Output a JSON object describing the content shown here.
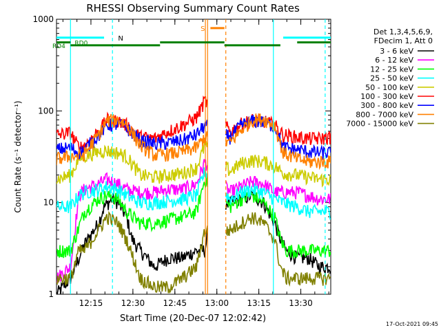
{
  "chart_data": {
    "type": "line",
    "title": "RHESSI Observing Summary Count Rates",
    "xlabel": "Start Time (20-Dec-07 12:02:42)",
    "ylabel": "Count Rate (s⁻¹ detector⁻¹)",
    "yscale": "log",
    "ylim": [
      1,
      1000
    ],
    "xlim_minutes": [
      0,
      98
    ],
    "x_ticks": [
      "12:15",
      "12:30",
      "12:45",
      "13:00",
      "13:15",
      "13:30"
    ],
    "y_ticks": [
      "1",
      "10",
      "100",
      "1000"
    ],
    "legend_title": [
      "Det 1,3,4,5,6,9,",
      "FDecim 1, Att 0"
    ],
    "legend_position": "right",
    "footer": "17-Oct-2021 09:45",
    "grid": false,
    "series": [
      {
        "name": "3 - 6 keV",
        "color": "#000000",
        "gap": [
          1.0,
          1.8
        ],
        "offset": 0,
        "profile": [
          [
            0,
            1.0
          ],
          [
            5,
            1.5
          ],
          [
            10,
            3.5
          ],
          [
            15,
            6
          ],
          [
            17,
            9
          ],
          [
            20,
            11
          ],
          [
            22,
            10
          ],
          [
            25,
            7
          ],
          [
            27,
            4
          ],
          [
            30,
            3
          ],
          [
            35,
            2
          ],
          [
            40,
            2.5
          ],
          [
            45,
            2.5
          ],
          [
            50,
            3
          ],
          [
            53,
            3
          ],
          [
            56,
            10
          ],
          [
            62,
            10
          ],
          [
            66,
            11
          ],
          [
            70,
            12
          ],
          [
            74,
            10
          ],
          [
            78,
            6
          ],
          [
            80,
            4
          ],
          [
            82,
            3
          ],
          [
            86,
            2.5
          ],
          [
            90,
            2.5
          ],
          [
            94,
            2
          ],
          [
            98,
            2
          ]
        ]
      },
      {
        "name": "6 - 12 keV",
        "color": "#ff00ff",
        "gap": [
          1.0,
          1.5
        ],
        "offset": 0,
        "profile": [
          [
            0,
            1.5
          ],
          [
            5,
            2.0
          ],
          [
            8,
            12
          ],
          [
            10,
            14
          ],
          [
            15,
            16
          ],
          [
            18,
            18
          ],
          [
            22,
            16
          ],
          [
            25,
            14
          ],
          [
            30,
            13
          ],
          [
            35,
            13
          ],
          [
            40,
            14
          ],
          [
            45,
            14
          ],
          [
            50,
            16
          ],
          [
            53,
            28
          ],
          [
            62,
            13
          ],
          [
            66,
            15
          ],
          [
            70,
            17
          ],
          [
            74,
            16
          ],
          [
            78,
            13
          ],
          [
            81,
            13
          ],
          [
            86,
            13
          ],
          [
            90,
            12
          ],
          [
            94,
            11
          ],
          [
            98,
            11
          ]
        ]
      },
      {
        "name": "12 - 25 keV",
        "color": "#00ff00",
        "gap": [
          1.0,
          2.0
        ],
        "offset": 0,
        "profile": [
          [
            0,
            3
          ],
          [
            5,
            3
          ],
          [
            10,
            8
          ],
          [
            15,
            11
          ],
          [
            18,
            12
          ],
          [
            22,
            11
          ],
          [
            25,
            8
          ],
          [
            30,
            6
          ],
          [
            35,
            6
          ],
          [
            40,
            6.5
          ],
          [
            45,
            7
          ],
          [
            50,
            8
          ],
          [
            53,
            18
          ],
          [
            62,
            9
          ],
          [
            66,
            11
          ],
          [
            70,
            12
          ],
          [
            74,
            10
          ],
          [
            78,
            7
          ],
          [
            80,
            4
          ],
          [
            82,
            3
          ],
          [
            86,
            3
          ],
          [
            90,
            3
          ],
          [
            94,
            3
          ],
          [
            98,
            3
          ]
        ]
      },
      {
        "name": "25 - 50 keV",
        "color": "#00ffff",
        "gap": [
          1.0,
          2.0
        ],
        "offset": 0,
        "profile": [
          [
            0,
            9
          ],
          [
            5,
            9
          ],
          [
            8,
            12
          ],
          [
            10,
            13
          ],
          [
            15,
            14
          ],
          [
            18,
            15
          ],
          [
            22,
            14
          ],
          [
            25,
            12
          ],
          [
            30,
            10
          ],
          [
            35,
            10
          ],
          [
            40,
            10.5
          ],
          [
            45,
            11
          ],
          [
            50,
            12
          ],
          [
            53,
            22
          ],
          [
            62,
            11
          ],
          [
            66,
            13
          ],
          [
            70,
            14
          ],
          [
            74,
            13
          ],
          [
            78,
            11
          ],
          [
            81,
            10
          ],
          [
            86,
            9
          ],
          [
            90,
            8
          ],
          [
            94,
            8
          ],
          [
            98,
            8
          ]
        ]
      },
      {
        "name": "50 - 100 keV",
        "color": "#cccc00",
        "gap": [
          1.0,
          1.8
        ],
        "offset": 0,
        "profile": [
          [
            0,
            18
          ],
          [
            5,
            20
          ],
          [
            8,
            30
          ],
          [
            10,
            32
          ],
          [
            15,
            36
          ],
          [
            18,
            37
          ],
          [
            22,
            35
          ],
          [
            25,
            32
          ],
          [
            30,
            20
          ],
          [
            35,
            19
          ],
          [
            40,
            20
          ],
          [
            45,
            21
          ],
          [
            50,
            24
          ],
          [
            53,
            42
          ],
          [
            62,
            22
          ],
          [
            66,
            27
          ],
          [
            70,
            29
          ],
          [
            74,
            28
          ],
          [
            78,
            25
          ],
          [
            81,
            21
          ],
          [
            86,
            20
          ],
          [
            90,
            19
          ],
          [
            94,
            18
          ],
          [
            98,
            18
          ]
        ]
      },
      {
        "name": "100 - 300 keV",
        "color": "#ff0000",
        "gap": [
          1.0,
          1.8
        ],
        "offset": 0,
        "profile": [
          [
            0,
            55
          ],
          [
            5,
            58
          ],
          [
            8,
            40
          ],
          [
            10,
            42
          ],
          [
            15,
            60
          ],
          [
            18,
            80
          ],
          [
            22,
            78
          ],
          [
            25,
            70
          ],
          [
            30,
            52
          ],
          [
            35,
            50
          ],
          [
            40,
            60
          ],
          [
            45,
            70
          ],
          [
            50,
            85
          ],
          [
            53,
            130
          ],
          [
            62,
            60
          ],
          [
            66,
            72
          ],
          [
            70,
            80
          ],
          [
            74,
            78
          ],
          [
            78,
            70
          ],
          [
            81,
            55
          ],
          [
            86,
            52
          ],
          [
            90,
            50
          ],
          [
            94,
            50
          ],
          [
            98,
            52
          ]
        ]
      },
      {
        "name": "300 - 800 keV",
        "color": "#0000ff",
        "gap": [
          1.0,
          1.8
        ],
        "offset": 0,
        "profile": [
          [
            0,
            38
          ],
          [
            5,
            40
          ],
          [
            8,
            35
          ],
          [
            10,
            38
          ],
          [
            15,
            55
          ],
          [
            18,
            70
          ],
          [
            22,
            72
          ],
          [
            25,
            66
          ],
          [
            30,
            48
          ],
          [
            35,
            44
          ],
          [
            40,
            45
          ],
          [
            45,
            48
          ],
          [
            50,
            55
          ],
          [
            53,
            70
          ],
          [
            62,
            52
          ],
          [
            66,
            70
          ],
          [
            70,
            78
          ],
          [
            74,
            76
          ],
          [
            78,
            68
          ],
          [
            81,
            40
          ],
          [
            86,
            38
          ],
          [
            90,
            36
          ],
          [
            94,
            35
          ],
          [
            98,
            35
          ]
        ]
      },
      {
        "name": "800 - 7000 keV",
        "color": "#ff8000",
        "gap": [
          1.0,
          1.8
        ],
        "offset": 0,
        "profile": [
          [
            0,
            30
          ],
          [
            5,
            32
          ],
          [
            8,
            32
          ],
          [
            10,
            34
          ],
          [
            15,
            55
          ],
          [
            18,
            78
          ],
          [
            22,
            80
          ],
          [
            25,
            72
          ],
          [
            30,
            42
          ],
          [
            35,
            33
          ],
          [
            40,
            34
          ],
          [
            45,
            36
          ],
          [
            50,
            40
          ],
          [
            53,
            52
          ],
          [
            62,
            45
          ],
          [
            66,
            62
          ],
          [
            70,
            80
          ],
          [
            74,
            82
          ],
          [
            78,
            70
          ],
          [
            81,
            35
          ],
          [
            86,
            30
          ],
          [
            90,
            28
          ],
          [
            94,
            28
          ],
          [
            98,
            28
          ]
        ]
      },
      {
        "name": "7000 - 15000 keV",
        "color": "#808000",
        "gap": [
          1.0,
          1.5
        ],
        "offset": 0,
        "profile": [
          [
            0,
            1.5
          ],
          [
            5,
            1.5
          ],
          [
            8,
            3
          ],
          [
            10,
            3
          ],
          [
            15,
            5
          ],
          [
            18,
            7
          ],
          [
            22,
            6
          ],
          [
            25,
            4
          ],
          [
            30,
            1.5
          ],
          [
            35,
            1.2
          ],
          [
            40,
            1.2
          ],
          [
            45,
            1.5
          ],
          [
            50,
            2
          ],
          [
            53,
            5
          ],
          [
            62,
            5
          ],
          [
            66,
            6
          ],
          [
            70,
            7
          ],
          [
            74,
            6
          ],
          [
            78,
            4
          ],
          [
            80,
            2
          ],
          [
            82,
            1.5
          ],
          [
            86,
            1.5
          ],
          [
            90,
            1.5
          ],
          [
            94,
            1.5
          ],
          [
            98,
            1.5
          ]
        ]
      }
    ],
    "annotations": [
      {
        "text": "N",
        "x": 20,
        "color": "#00ffff",
        "style": "dashed-vertical"
      },
      {
        "text": "S",
        "x": 55,
        "color": "#ff8000",
        "style": "vertical-pair"
      },
      {
        "text": "RD0",
        "color": "#00ffff"
      },
      {
        "text": "RD4",
        "color": "#008000"
      }
    ],
    "vlines": [
      {
        "x": 5,
        "color": "#00ffff",
        "dash": false
      },
      {
        "x": 20,
        "color": "#00ffff",
        "dash": true
      },
      {
        "x": 53.2,
        "color": "#ff8000",
        "dash": false
      },
      {
        "x": 54.0,
        "color": "#ff8000",
        "dash": false
      },
      {
        "x": 60.5,
        "color": "#ff8000",
        "dash": true
      },
      {
        "x": 77.5,
        "color": "#00ffff",
        "dash": false
      },
      {
        "x": 96,
        "color": "#00ffff",
        "dash": true
      }
    ],
    "bars": [
      {
        "name": "night",
        "color": "#00ffff",
        "y": 630,
        "segments": [
          [
            0,
            17
          ],
          [
            81,
            98
          ]
        ]
      },
      {
        "name": "saa",
        "color": "#ff8000",
        "y": 800,
        "segments": [
          [
            55,
            60
          ]
        ]
      },
      {
        "name": "rd0",
        "color": "#008000",
        "y": 560,
        "segments": [
          [
            0,
            5
          ],
          [
            37,
            60
          ],
          [
            86,
            98
          ]
        ]
      },
      {
        "name": "rd4",
        "color": "#008000",
        "y": 520,
        "segments": [
          [
            5,
            37
          ],
          [
            60,
            80
          ]
        ]
      }
    ],
    "night_label": "N",
    "saa_label": "S",
    "rd0_label": "RD0",
    "rd4_label": "RD4"
  }
}
